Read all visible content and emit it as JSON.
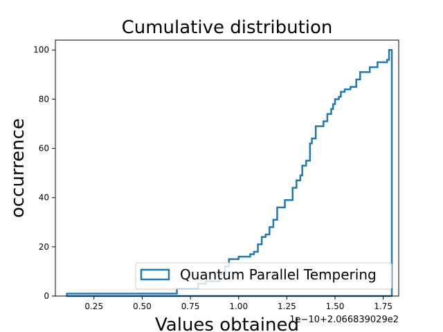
{
  "chart_data": {
    "type": "line",
    "title": "Cumulative distribution",
    "xlabel": "Values obtained",
    "ylabel": "occurrence",
    "x_offset_label": "1e−10+2.066839029e2",
    "xlim": [
      0.05,
      1.83
    ],
    "ylim": [
      0,
      104
    ],
    "x_ticks": [
      0.25,
      0.5,
      0.75,
      1.0,
      1.25,
      1.5,
      1.75
    ],
    "x_tick_labels": [
      "0.25",
      "0.50",
      "0.75",
      "1.00",
      "1.25",
      "1.50",
      "1.75"
    ],
    "y_ticks": [
      0,
      20,
      40,
      60,
      80,
      100
    ],
    "y_tick_labels": [
      "0",
      "20",
      "40",
      "60",
      "80",
      "100"
    ],
    "grid": false,
    "legend_position": "lower-right",
    "series": [
      {
        "name": "Quantum Parallel Tempering",
        "color": "#1f77b4",
        "style": "step",
        "x": [
          0.11,
          0.68,
          0.79,
          0.83,
          0.9,
          0.93,
          0.95,
          1.0,
          1.06,
          1.08,
          1.1,
          1.12,
          1.14,
          1.16,
          1.18,
          1.2,
          1.24,
          1.28,
          1.3,
          1.32,
          1.33,
          1.35,
          1.37,
          1.38,
          1.4,
          1.44,
          1.46,
          1.48,
          1.49,
          1.5,
          1.52,
          1.53,
          1.55,
          1.58,
          1.61,
          1.63,
          1.68,
          1.72,
          1.77,
          1.78
        ],
        "y": [
          1,
          3,
          5,
          6,
          9,
          12,
          15,
          16,
          17,
          18,
          21,
          24,
          25,
          28,
          31,
          36,
          39,
          44,
          47,
          49,
          53,
          55,
          62,
          64,
          69,
          71,
          74,
          76,
          78,
          80,
          81,
          83,
          84,
          85,
          88,
          91,
          93,
          95,
          96,
          98
        ]
      }
    ]
  }
}
